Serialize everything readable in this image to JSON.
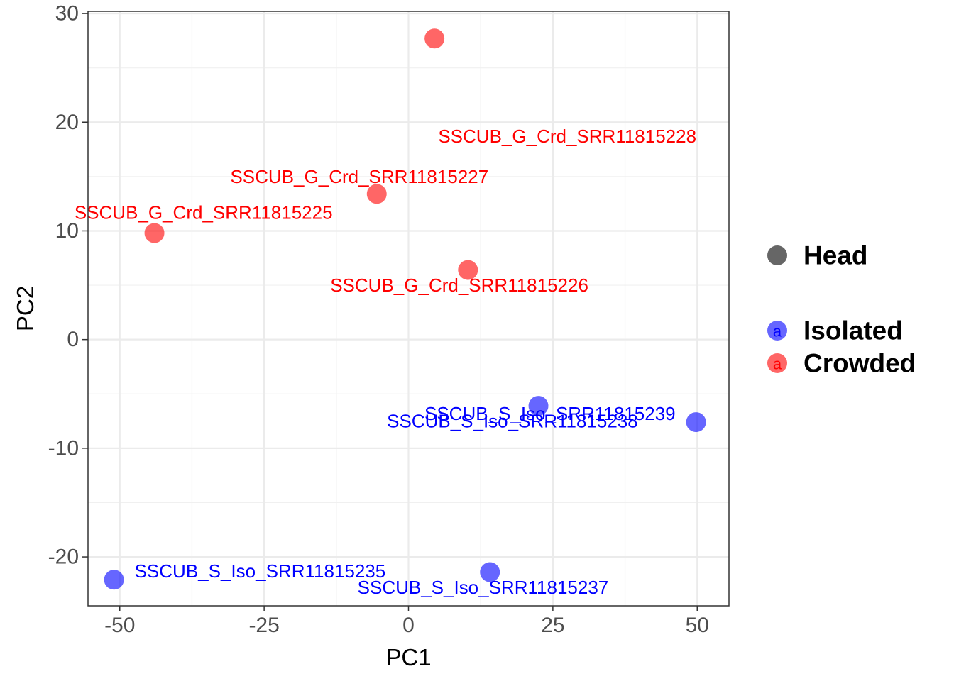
{
  "chart_data": {
    "type": "scatter",
    "xlabel": "PC1",
    "ylabel": "PC2",
    "xlim": [
      -55.5,
      55.5
    ],
    "ylim": [
      -24.5,
      30.2
    ],
    "x_ticks": [
      -50,
      -25,
      0,
      25,
      50
    ],
    "y_ticks": [
      -20,
      -10,
      0,
      10,
      20,
      30
    ],
    "x_tick_labels": [
      "-50",
      "-25",
      "0",
      "25",
      "50"
    ],
    "y_tick_labels": [
      "-20",
      "-10",
      "0",
      "10",
      "20",
      "30"
    ],
    "grid": true,
    "legend_position": "right",
    "legend": {
      "shape_title": "Head",
      "key_letter": "a",
      "entries": [
        {
          "label": "Isolated",
          "color": "#0000ff"
        },
        {
          "label": "Crowded",
          "color": "#ff0000"
        }
      ]
    },
    "points": [
      {
        "label": "SSCUB_G_Crd_SRR11815228",
        "x": 4.5,
        "y": 27.7,
        "group": "Crowded",
        "label_dx": 23,
        "label_dy": -9
      },
      {
        "label": "SSCUB_G_Crd_SRR11815227",
        "x": -5.5,
        "y": 13.4,
        "group": "Crowded",
        "label_dx": -3,
        "label_dy": 1.6
      },
      {
        "label": "SSCUB_G_Crd_SRR11815225",
        "x": -44.0,
        "y": 9.8,
        "group": "Crowded",
        "label_dx": 8.5,
        "label_dy": 1.9
      },
      {
        "label": "SSCUB_G_Crd_SRR11815226",
        "x": 10.3,
        "y": 6.4,
        "group": "Crowded",
        "label_dx": -1.5,
        "label_dy": -1.4
      },
      {
        "label": "SSCUB_S_Iso_SRR11815238",
        "x": 22.5,
        "y": -6.1,
        "group": "Isolated",
        "label_dx": -4.5,
        "label_dy": -1.4
      },
      {
        "label": "SSCUB_S_Iso_SRR11815239",
        "x": 49.8,
        "y": -7.6,
        "group": "Isolated",
        "label_dx": -25.3,
        "label_dy": 0.8
      },
      {
        "label": "SSCUB_S_Iso_SRR11815237",
        "x": 14.1,
        "y": -21.4,
        "group": "Isolated",
        "label_dx": -1.2,
        "label_dy": -1.4
      },
      {
        "label": "SSCUB_S_Iso_SRR11815235",
        "x": -51.0,
        "y": -22.1,
        "group": "Isolated",
        "label_dx": 25.3,
        "label_dy": 0.8
      }
    ]
  }
}
